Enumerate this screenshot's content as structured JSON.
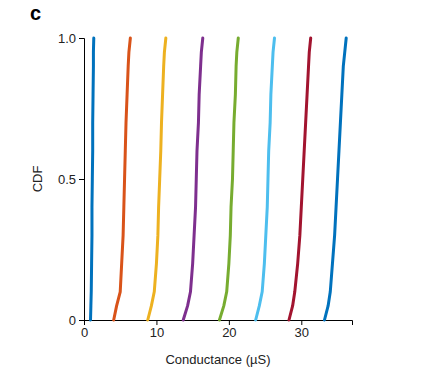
{
  "chart_data": {
    "type": "line",
    "panel_label": "c",
    "x_label": "Conductance (µS)",
    "y_label": "CDF",
    "xlim": [
      0,
      37
    ],
    "ylim": [
      0,
      1
    ],
    "xticks": [
      0,
      10,
      20,
      30
    ],
    "yticks": [
      0,
      0.5,
      {
        "value": 1,
        "label": "1.0"
      }
    ],
    "series": [
      {
        "color": "#0072bd",
        "x": [
          0.9,
          0.95,
          1.0,
          1.05,
          1.1,
          1.1,
          1.15,
          1.2,
          1.2,
          1.25,
          1.3,
          1.3,
          1.35
        ],
        "values": [
          0,
          0.05,
          0.1,
          0.2,
          0.3,
          0.4,
          0.5,
          0.6,
          0.7,
          0.8,
          0.9,
          0.95,
          1
        ]
      },
      {
        "color": "#d95319",
        "x": [
          4.1,
          4.5,
          5.0,
          5.2,
          5.4,
          5.5,
          5.6,
          5.7,
          5.8,
          5.95,
          6.1,
          6.2,
          6.4
        ],
        "values": [
          0,
          0.05,
          0.1,
          0.2,
          0.3,
          0.4,
          0.5,
          0.6,
          0.7,
          0.8,
          0.9,
          0.95,
          1
        ]
      },
      {
        "color": "#edb120",
        "x": [
          8.8,
          9.3,
          9.7,
          10.0,
          10.2,
          10.3,
          10.45,
          10.6,
          10.7,
          10.85,
          11.0,
          11.1,
          11.3
        ],
        "values": [
          0,
          0.05,
          0.1,
          0.2,
          0.3,
          0.4,
          0.5,
          0.6,
          0.7,
          0.8,
          0.9,
          0.95,
          1
        ]
      },
      {
        "color": "#7e2f8e",
        "x": [
          13.7,
          14.3,
          14.7,
          15.0,
          15.2,
          15.4,
          15.5,
          15.6,
          15.8,
          15.9,
          16.1,
          16.2,
          16.4
        ],
        "values": [
          0,
          0.05,
          0.1,
          0.2,
          0.3,
          0.4,
          0.5,
          0.6,
          0.7,
          0.8,
          0.9,
          0.95,
          1
        ]
      },
      {
        "color": "#77ac30",
        "x": [
          18.7,
          19.3,
          19.7,
          20.0,
          20.2,
          20.3,
          20.5,
          20.6,
          20.7,
          20.9,
          21.0,
          21.1,
          21.3
        ],
        "values": [
          0,
          0.05,
          0.1,
          0.2,
          0.3,
          0.4,
          0.5,
          0.6,
          0.7,
          0.8,
          0.9,
          0.95,
          1
        ]
      },
      {
        "color": "#4dbeee",
        "x": [
          23.7,
          24.2,
          24.6,
          24.9,
          25.1,
          25.3,
          25.4,
          25.5,
          25.7,
          25.8,
          26.0,
          26.1,
          26.3
        ],
        "values": [
          0,
          0.05,
          0.1,
          0.2,
          0.3,
          0.4,
          0.5,
          0.6,
          0.7,
          0.8,
          0.9,
          0.95,
          1
        ]
      },
      {
        "color": "#a2142f",
        "x": [
          28.3,
          28.8,
          29.1,
          29.5,
          29.8,
          30.0,
          30.2,
          30.4,
          30.6,
          30.8,
          31.0,
          31.1,
          31.3
        ],
        "values": [
          0,
          0.05,
          0.1,
          0.2,
          0.3,
          0.4,
          0.5,
          0.6,
          0.7,
          0.8,
          0.9,
          0.95,
          1
        ]
      },
      {
        "color": "#0072bd",
        "x": [
          33.2,
          33.7,
          34.0,
          34.3,
          34.6,
          34.8,
          35.0,
          35.2,
          35.4,
          35.6,
          35.8,
          36.0,
          36.2
        ],
        "values": [
          0,
          0.05,
          0.1,
          0.2,
          0.3,
          0.4,
          0.5,
          0.6,
          0.7,
          0.8,
          0.9,
          0.95,
          1
        ]
      }
    ]
  }
}
